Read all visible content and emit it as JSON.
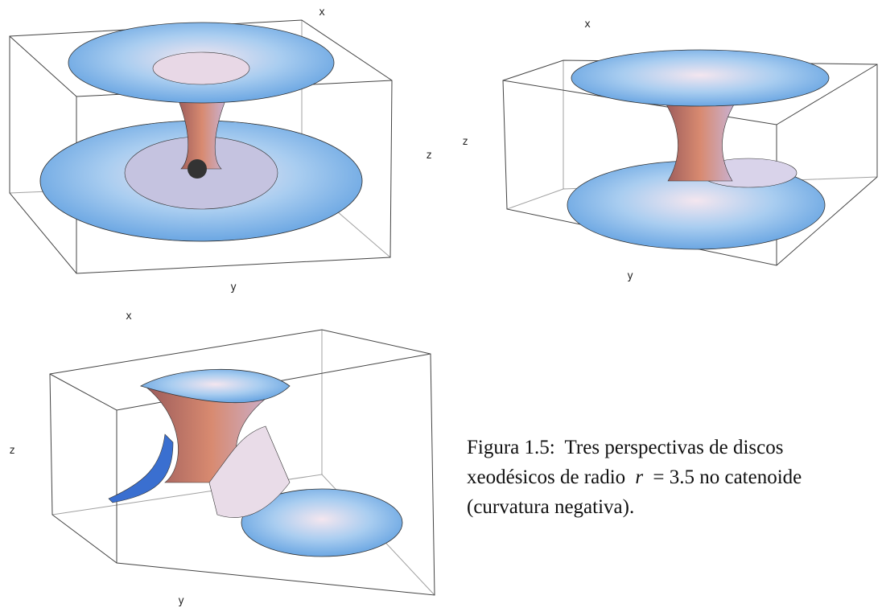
{
  "figures": [
    {
      "labels": {
        "x": "x",
        "y": "y",
        "z": "z"
      }
    },
    {
      "labels": {
        "x": "x",
        "y": "y",
        "z": "z"
      }
    },
    {
      "labels": {
        "x": "x",
        "y": "y",
        "z": "z"
      }
    }
  ],
  "caption": {
    "label": "Figura 1.5:",
    "text_1": "Tres perspectivas de discos",
    "text_2": "xeodésicos de radio",
    "variable": "r",
    "text_3": "= 3.5 no catenoide",
    "text_4": "(curvatura negativa)."
  }
}
